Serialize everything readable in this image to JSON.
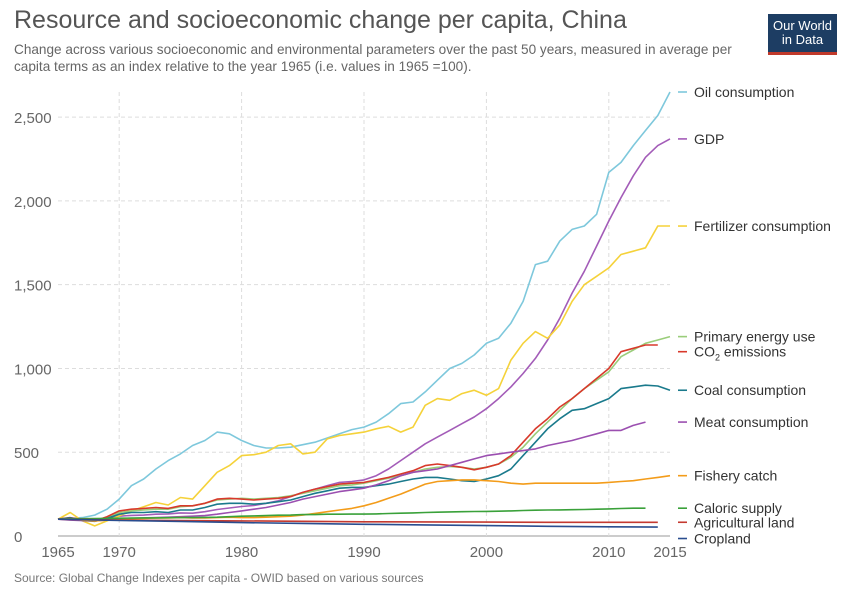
{
  "header": {
    "title": "Resource and socioeconomic change per capita, China",
    "subtitle": "Change across various socioeconomic and environmental parameters over the past 50 years, measured in average per capita terms as an index relative to the year 1965 (i.e. values in 1965 =100).",
    "logo_line1": "Our World",
    "logo_line2": "in Data"
  },
  "footer": {
    "source": "Source: Global Change Indexes per capita - OWID based on various sources"
  },
  "colors": {
    "logo_bg": "#1d3d63",
    "logo_accent": "#c0392b"
  },
  "chart_data": {
    "type": "line",
    "title": "Resource and socioeconomic change per capita, China",
    "xlabel": "",
    "ylabel": "",
    "xlim": [
      1965,
      2015
    ],
    "ylim": [
      0,
      2650
    ],
    "x_ticks": [
      1965,
      1970,
      1980,
      1990,
      2000,
      2010,
      2015
    ],
    "x_tick_labels": [
      "1965",
      "1970",
      "1980",
      "1990",
      "2000",
      "2010",
      "2015"
    ],
    "y_ticks": [
      0,
      500,
      1000,
      1500,
      2000,
      2500
    ],
    "y_tick_labels": [
      "0",
      "500",
      "1,000",
      "1,500",
      "2,000",
      "2,500"
    ],
    "grid": true,
    "legend_position": "right, labels at series ends",
    "series": [
      {
        "name": "Oil consumption",
        "color": "#7ec8dc",
        "x": [
          1965,
          1966,
          1967,
          1968,
          1969,
          1970,
          1971,
          1972,
          1973,
          1974,
          1975,
          1976,
          1977,
          1978,
          1979,
          1980,
          1981,
          1982,
          1983,
          1984,
          1985,
          1986,
          1987,
          1988,
          1989,
          1990,
          1991,
          1992,
          1993,
          1994,
          1995,
          1996,
          1997,
          1998,
          1999,
          2000,
          2001,
          2002,
          2003,
          2004,
          2005,
          2006,
          2007,
          2008,
          2009,
          2010,
          2011,
          2012,
          2013,
          2014,
          2015
        ],
        "y": [
          100,
          105,
          110,
          125,
          160,
          220,
          300,
          340,
          400,
          450,
          490,
          540,
          570,
          620,
          610,
          570,
          540,
          525,
          525,
          530,
          545,
          560,
          585,
          610,
          635,
          650,
          680,
          730,
          790,
          800,
          860,
          930,
          1000,
          1030,
          1080,
          1150,
          1180,
          1270,
          1400,
          1620,
          1640,
          1760,
          1830,
          1850,
          1920,
          2170,
          2230,
          2330,
          2420,
          2510,
          2650
        ]
      },
      {
        "name": "GDP",
        "color": "#a35cb8",
        "x": [
          1965,
          1966,
          1967,
          1968,
          1969,
          1970,
          1971,
          1972,
          1973,
          1974,
          1975,
          1976,
          1977,
          1978,
          1979,
          1980,
          1981,
          1982,
          1983,
          1984,
          1985,
          1986,
          1987,
          1988,
          1989,
          1990,
          1991,
          1992,
          1993,
          1994,
          1995,
          1996,
          1997,
          1998,
          1999,
          2000,
          2001,
          2002,
          2003,
          2004,
          2005,
          2006,
          2007,
          2008,
          2009,
          2010,
          2011,
          2012,
          2013,
          2014,
          2015
        ],
        "y": [
          100,
          108,
          102,
          95,
          105,
          118,
          123,
          125,
          130,
          132,
          138,
          136,
          145,
          158,
          167,
          176,
          182,
          195,
          210,
          235,
          260,
          280,
          300,
          320,
          325,
          335,
          360,
          400,
          450,
          500,
          550,
          590,
          630,
          670,
          710,
          760,
          820,
          890,
          970,
          1060,
          1170,
          1300,
          1450,
          1580,
          1730,
          1880,
          2020,
          2150,
          2260,
          2330,
          2370
        ]
      },
      {
        "name": "Fertilizer consumption",
        "color": "#f5d23a",
        "x": [
          1965,
          1966,
          1967,
          1968,
          1969,
          1970,
          1971,
          1972,
          1973,
          1974,
          1975,
          1976,
          1977,
          1978,
          1979,
          1980,
          1981,
          1982,
          1983,
          1984,
          1985,
          1986,
          1987,
          1988,
          1989,
          1990,
          1991,
          1992,
          1993,
          1994,
          1995,
          1996,
          1997,
          1998,
          1999,
          2000,
          2001,
          2002,
          2003,
          2004,
          2005,
          2006,
          2007,
          2008,
          2009,
          2010,
          2011,
          2012,
          2013,
          2014,
          2015
        ],
        "y": [
          100,
          140,
          90,
          60,
          90,
          120,
          150,
          175,
          200,
          185,
          230,
          220,
          300,
          380,
          420,
          480,
          485,
          500,
          540,
          550,
          490,
          500,
          580,
          600,
          610,
          620,
          640,
          655,
          620,
          650,
          780,
          820,
          810,
          850,
          870,
          840,
          880,
          1050,
          1150,
          1220,
          1180,
          1260,
          1400,
          1500,
          1550,
          1600,
          1680,
          1700,
          1720,
          1850,
          1850
        ]
      },
      {
        "name": "Primary energy use",
        "color": "#9acd7a",
        "x": [
          1965,
          1966,
          1967,
          1968,
          1969,
          1970,
          1971,
          1972,
          1973,
          1974,
          1975,
          1976,
          1977,
          1978,
          1979,
          1980,
          1981,
          1982,
          1983,
          1984,
          1985,
          1986,
          1987,
          1988,
          1989,
          1990,
          1991,
          1992,
          1993,
          1994,
          1995,
          1996,
          1997,
          1998,
          1999,
          2000,
          2001,
          2002,
          2003,
          2004,
          2005,
          2006,
          2007,
          2008,
          2009,
          2010,
          2011,
          2012,
          2013,
          2014,
          2015
        ],
        "y": [
          100,
          108,
          98,
          95,
          110,
          140,
          150,
          155,
          160,
          160,
          175,
          180,
          195,
          215,
          220,
          225,
          220,
          225,
          230,
          240,
          255,
          270,
          285,
          300,
          305,
          315,
          330,
          345,
          360,
          380,
          400,
          410,
          415,
          410,
          400,
          410,
          430,
          470,
          530,
          610,
          680,
          750,
          820,
          880,
          930,
          980,
          1070,
          1110,
          1150,
          1170,
          1190
        ]
      },
      {
        "name": "CO2 emissions",
        "color": "#d8392b",
        "x": [
          1965,
          1966,
          1967,
          1968,
          1969,
          1970,
          1971,
          1972,
          1973,
          1974,
          1975,
          1976,
          1977,
          1978,
          1979,
          1980,
          1981,
          1982,
          1983,
          1984,
          1985,
          1986,
          1987,
          1988,
          1989,
          1990,
          1991,
          1992,
          1993,
          1994,
          1995,
          1996,
          1997,
          1998,
          1999,
          2000,
          2001,
          2002,
          2003,
          2004,
          2005,
          2006,
          2007,
          2008,
          2009,
          2010,
          2011,
          2012,
          2013,
          2014
        ],
        "y": [
          100,
          110,
          95,
          90,
          115,
          150,
          160,
          165,
          170,
          165,
          180,
          180,
          195,
          220,
          225,
          220,
          215,
          220,
          225,
          235,
          260,
          280,
          295,
          310,
          315,
          320,
          335,
          350,
          370,
          390,
          420,
          430,
          420,
          410,
          395,
          410,
          430,
          480,
          560,
          640,
          700,
          770,
          820,
          880,
          940,
          1000,
          1100,
          1120,
          1140,
          1140
        ]
      },
      {
        "name": "Coal consumption",
        "color": "#1a7a8c",
        "x": [
          1965,
          1966,
          1967,
          1968,
          1969,
          1970,
          1971,
          1972,
          1973,
          1974,
          1975,
          1976,
          1977,
          1978,
          1979,
          1980,
          1981,
          1982,
          1983,
          1984,
          1985,
          1986,
          1987,
          1988,
          1989,
          1990,
          1991,
          1992,
          1993,
          1994,
          1995,
          1996,
          1997,
          1998,
          1999,
          2000,
          2001,
          2002,
          2003,
          2004,
          2005,
          2006,
          2007,
          2008,
          2009,
          2010,
          2011,
          2012,
          2013,
          2014,
          2015
        ],
        "y": [
          100,
          108,
          92,
          88,
          105,
          130,
          140,
          140,
          145,
          140,
          155,
          155,
          170,
          190,
          195,
          195,
          190,
          195,
          205,
          215,
          235,
          255,
          270,
          285,
          290,
          290,
          300,
          310,
          325,
          340,
          350,
          350,
          340,
          330,
          325,
          340,
          360,
          400,
          480,
          560,
          640,
          700,
          750,
          760,
          790,
          820,
          880,
          890,
          900,
          895,
          870
        ]
      },
      {
        "name": "Meat consumption",
        "color": "#9b4fb0",
        "x": [
          1965,
          1966,
          1967,
          1968,
          1969,
          1970,
          1971,
          1972,
          1973,
          1974,
          1975,
          1976,
          1977,
          1978,
          1979,
          1980,
          1981,
          1982,
          1983,
          1984,
          1985,
          1986,
          1987,
          1988,
          1989,
          1990,
          1991,
          1992,
          1993,
          1994,
          1995,
          1996,
          1997,
          1998,
          1999,
          2000,
          2001,
          2002,
          2003,
          2004,
          2005,
          2006,
          2007,
          2008,
          2009,
          2010,
          2011,
          2012,
          2013
        ],
        "y": [
          100,
          95,
          92,
          90,
          95,
          100,
          105,
          108,
          110,
          112,
          115,
          118,
          122,
          130,
          140,
          150,
          160,
          170,
          185,
          200,
          220,
          235,
          250,
          265,
          275,
          285,
          305,
          330,
          360,
          380,
          390,
          400,
          420,
          440,
          460,
          480,
          490,
          500,
          510,
          520,
          540,
          555,
          570,
          590,
          610,
          630,
          630,
          660,
          680
        ]
      },
      {
        "name": "Fishery catch",
        "color": "#f39c1a",
        "x": [
          1965,
          1966,
          1967,
          1968,
          1969,
          1970,
          1971,
          1972,
          1973,
          1974,
          1975,
          1976,
          1977,
          1978,
          1979,
          1980,
          1981,
          1982,
          1983,
          1984,
          1985,
          1986,
          1987,
          1988,
          1989,
          1990,
          1991,
          1992,
          1993,
          1994,
          1995,
          1996,
          1997,
          1998,
          1999,
          2000,
          2001,
          2002,
          2003,
          2004,
          2005,
          2006,
          2007,
          2008,
          2009,
          2010,
          2011,
          2012,
          2013,
          2014,
          2015
        ],
        "y": [
          100,
          102,
          95,
          90,
          95,
          100,
          103,
          105,
          108,
          108,
          110,
          108,
          108,
          110,
          112,
          110,
          110,
          112,
          115,
          118,
          125,
          135,
          145,
          155,
          165,
          180,
          200,
          225,
          250,
          280,
          310,
          325,
          330,
          335,
          335,
          330,
          325,
          315,
          310,
          315,
          315,
          315,
          315,
          315,
          315,
          320,
          325,
          330,
          340,
          350,
          360
        ]
      },
      {
        "name": "Caloric supply",
        "color": "#3aa13a",
        "x": [
          1965,
          1966,
          1967,
          1968,
          1969,
          1970,
          1971,
          1972,
          1973,
          1974,
          1975,
          1976,
          1977,
          1978,
          1979,
          1980,
          1981,
          1982,
          1983,
          1984,
          1985,
          1986,
          1987,
          1988,
          1989,
          1990,
          1991,
          1992,
          1993,
          1994,
          1995,
          1996,
          1997,
          1998,
          1999,
          2000,
          2001,
          2002,
          2003,
          2004,
          2005,
          2006,
          2007,
          2008,
          2009,
          2010,
          2011,
          2012,
          2013
        ],
        "y": [
          100,
          102,
          103,
          104,
          105,
          106,
          107,
          108,
          108,
          109,
          110,
          110,
          111,
          112,
          115,
          118,
          120,
          122,
          124,
          125,
          128,
          128,
          130,
          130,
          131,
          131,
          132,
          134,
          136,
          138,
          140,
          142,
          144,
          145,
          146,
          147,
          148,
          150,
          152,
          154,
          155,
          156,
          157,
          158,
          160,
          162,
          164,
          166,
          166
        ]
      },
      {
        "name": "Agricultural land",
        "color": "#c43a30",
        "x": [
          1965,
          1967,
          1970,
          1975,
          1980,
          1985,
          1990,
          1995,
          2000,
          2005,
          2010,
          2014
        ],
        "y": [
          100,
          98,
          95,
          92,
          90,
          88,
          85,
          84,
          83,
          82,
          82,
          82
        ]
      },
      {
        "name": "Cropland",
        "color": "#2a4d8f",
        "x": [
          1965,
          1967,
          1970,
          1975,
          1980,
          1985,
          1990,
          1995,
          2000,
          2005,
          2010,
          2014
        ],
        "y": [
          100,
          97,
          93,
          87,
          80,
          75,
          70,
          66,
          62,
          58,
          55,
          53
        ]
      }
    ],
    "legend_labels": [
      {
        "series": 0,
        "text": "Oil consumption",
        "label_y": 2650
      },
      {
        "series": 1,
        "text": "GDP",
        "label_y": 2370
      },
      {
        "series": 2,
        "text": "Fertilizer consumption",
        "label_y": 1850
      },
      {
        "series": 3,
        "text": "Primary energy use",
        "label_y": 1190
      },
      {
        "series": 4,
        "text": "CO",
        "sub": "2",
        "suffix": " emissions",
        "label_y": 1100
      },
      {
        "series": 5,
        "text": "Coal consumption",
        "label_y": 870
      },
      {
        "series": 6,
        "text": "Meat consumption",
        "label_y": 680
      },
      {
        "series": 7,
        "text": "Fishery catch",
        "label_y": 360
      },
      {
        "series": 8,
        "text": "Caloric supply",
        "label_y": 166
      },
      {
        "series": 9,
        "text": "Agricultural land",
        "label_y": 82
      },
      {
        "series": 10,
        "text": "Cropland",
        "label_y": -15
      }
    ]
  }
}
